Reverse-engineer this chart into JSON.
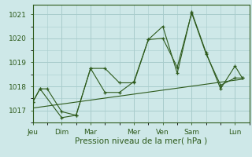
{
  "background_color": "#cee8e8",
  "grid_color": "#a8cccc",
  "line_color": "#2d5a1b",
  "title": "Pression niveau de la mer( hPa )",
  "ylim": [
    1016.5,
    1021.4
  ],
  "yticks": [
    1017,
    1018,
    1019,
    1020,
    1021
  ],
  "day_labels": [
    "Jeu",
    "Dim",
    "Mar",
    "Mer",
    "Ven",
    "Sam",
    "Lun"
  ],
  "day_positions": [
    0,
    2,
    4,
    7,
    9,
    11,
    14
  ],
  "xmin": 0,
  "xmax": 15,
  "series1_x": [
    0,
    0.5,
    1,
    2,
    3,
    4,
    5,
    6,
    7,
    8,
    9,
    10,
    11,
    12,
    13,
    14,
    14.5
  ],
  "series1_y": [
    1017.35,
    1017.9,
    1017.9,
    1016.95,
    1016.8,
    1018.75,
    1017.75,
    1017.75,
    1018.2,
    1019.95,
    1020.0,
    1018.8,
    1021.05,
    1019.35,
    1018.05,
    1018.35,
    1018.35
  ],
  "series2_x": [
    0,
    0.5,
    2,
    3,
    4,
    5,
    6,
    7,
    8,
    9,
    10,
    11,
    12,
    13,
    14,
    14.5
  ],
  "series2_y": [
    1017.35,
    1017.9,
    1016.7,
    1016.8,
    1018.75,
    1018.75,
    1018.15,
    1018.15,
    1019.95,
    1020.5,
    1018.55,
    1021.1,
    1019.4,
    1017.9,
    1018.85,
    1018.35
  ],
  "trend_x": [
    0,
    14.5
  ],
  "trend_y": [
    1017.1,
    1018.3
  ]
}
